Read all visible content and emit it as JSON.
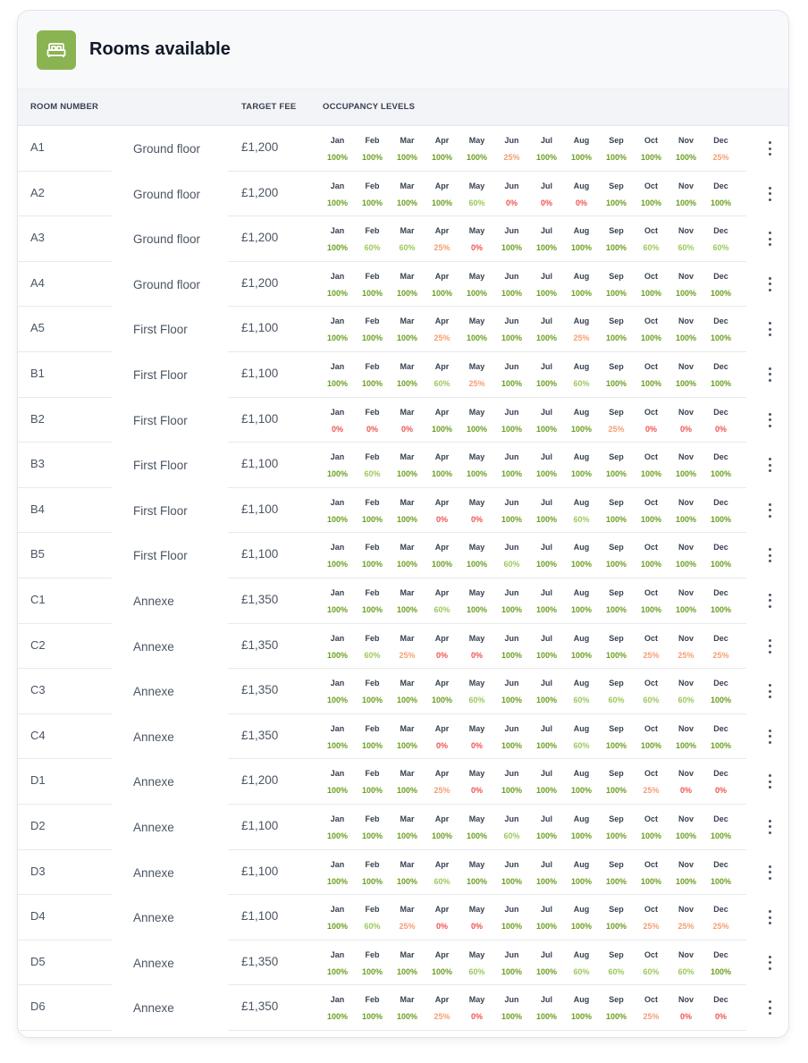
{
  "header": {
    "title": "Rooms available",
    "icon": "bed-icon",
    "accent": "#8ab451"
  },
  "columns": {
    "room_number": "ROOM NUMBER",
    "target_fee": "TARGET FEE",
    "occupancy": "OCCUPANCY LEVELS"
  },
  "months": [
    "Jan",
    "Feb",
    "Mar",
    "Apr",
    "May",
    "Jun",
    "Jul",
    "Aug",
    "Sep",
    "Oct",
    "Nov",
    "Dec"
  ],
  "level_colors": {
    "100%": "#6b9e1f",
    "60%": "#9cc95a",
    "25%": "#f59e73",
    "0%": "#ef5350"
  },
  "rows": [
    {
      "room": "A1",
      "floor": "Ground floor",
      "fee": "£1,200",
      "levels": [
        "100%",
        "100%",
        "100%",
        "100%",
        "100%",
        "25%",
        "100%",
        "100%",
        "100%",
        "100%",
        "100%",
        "25%"
      ]
    },
    {
      "room": "A2",
      "floor": "Ground floor",
      "fee": "£1,200",
      "levels": [
        "100%",
        "100%",
        "100%",
        "100%",
        "60%",
        "0%",
        "0%",
        "0%",
        "100%",
        "100%",
        "100%",
        "100%"
      ]
    },
    {
      "room": "A3",
      "floor": "Ground floor",
      "fee": "£1,200",
      "levels": [
        "100%",
        "60%",
        "60%",
        "25%",
        "0%",
        "100%",
        "100%",
        "100%",
        "100%",
        "60%",
        "60%",
        "60%"
      ]
    },
    {
      "room": "A4",
      "floor": "Ground floor",
      "fee": "£1,200",
      "levels": [
        "100%",
        "100%",
        "100%",
        "100%",
        "100%",
        "100%",
        "100%",
        "100%",
        "100%",
        "100%",
        "100%",
        "100%"
      ]
    },
    {
      "room": "A5",
      "floor": "First Floor",
      "fee": "£1,100",
      "levels": [
        "100%",
        "100%",
        "100%",
        "25%",
        "100%",
        "100%",
        "100%",
        "25%",
        "100%",
        "100%",
        "100%",
        "100%"
      ]
    },
    {
      "room": "B1",
      "floor": "First Floor",
      "fee": "£1,100",
      "levels": [
        "100%",
        "100%",
        "100%",
        "60%",
        "25%",
        "100%",
        "100%",
        "60%",
        "100%",
        "100%",
        "100%",
        "100%"
      ]
    },
    {
      "room": "B2",
      "floor": "First Floor",
      "fee": "£1,100",
      "levels": [
        "0%",
        "0%",
        "0%",
        "100%",
        "100%",
        "100%",
        "100%",
        "100%",
        "25%",
        "0%",
        "0%",
        "0%"
      ]
    },
    {
      "room": "B3",
      "floor": "First Floor",
      "fee": "£1,100",
      "levels": [
        "100%",
        "60%",
        "100%",
        "100%",
        "100%",
        "100%",
        "100%",
        "100%",
        "100%",
        "100%",
        "100%",
        "100%"
      ]
    },
    {
      "room": "B4",
      "floor": "First Floor",
      "fee": "£1,100",
      "levels": [
        "100%",
        "100%",
        "100%",
        "0%",
        "0%",
        "100%",
        "100%",
        "60%",
        "100%",
        "100%",
        "100%",
        "100%"
      ]
    },
    {
      "room": "B5",
      "floor": "First Floor",
      "fee": "£1,100",
      "levels": [
        "100%",
        "100%",
        "100%",
        "100%",
        "100%",
        "60%",
        "100%",
        "100%",
        "100%",
        "100%",
        "100%",
        "100%"
      ]
    },
    {
      "room": "C1",
      "floor": "Annexe",
      "fee": "£1,350",
      "levels": [
        "100%",
        "100%",
        "100%",
        "60%",
        "100%",
        "100%",
        "100%",
        "100%",
        "100%",
        "100%",
        "100%",
        "100%"
      ]
    },
    {
      "room": "C2",
      "floor": "Annexe",
      "fee": "£1,350",
      "levels": [
        "100%",
        "60%",
        "25%",
        "0%",
        "0%",
        "100%",
        "100%",
        "100%",
        "100%",
        "25%",
        "25%",
        "25%"
      ]
    },
    {
      "room": "C3",
      "floor": "Annexe",
      "fee": "£1,350",
      "levels": [
        "100%",
        "100%",
        "100%",
        "100%",
        "60%",
        "100%",
        "100%",
        "60%",
        "60%",
        "60%",
        "60%",
        "100%"
      ]
    },
    {
      "room": "C4",
      "floor": "Annexe",
      "fee": "£1,350",
      "levels": [
        "100%",
        "100%",
        "100%",
        "0%",
        "0%",
        "100%",
        "100%",
        "60%",
        "100%",
        "100%",
        "100%",
        "100%"
      ]
    },
    {
      "room": "D1",
      "floor": "Annexe",
      "fee": "£1,200",
      "levels": [
        "100%",
        "100%",
        "100%",
        "25%",
        "0%",
        "100%",
        "100%",
        "100%",
        "100%",
        "25%",
        "0%",
        "0%"
      ]
    },
    {
      "room": "D2",
      "floor": "Annexe",
      "fee": "£1,100",
      "levels": [
        "100%",
        "100%",
        "100%",
        "100%",
        "100%",
        "60%",
        "100%",
        "100%",
        "100%",
        "100%",
        "100%",
        "100%"
      ]
    },
    {
      "room": "D3",
      "floor": "Annexe",
      "fee": "£1,100",
      "levels": [
        "100%",
        "100%",
        "100%",
        "60%",
        "100%",
        "100%",
        "100%",
        "100%",
        "100%",
        "100%",
        "100%",
        "100%"
      ]
    },
    {
      "room": "D4",
      "floor": "Annexe",
      "fee": "£1,100",
      "levels": [
        "100%",
        "60%",
        "25%",
        "0%",
        "0%",
        "100%",
        "100%",
        "100%",
        "100%",
        "25%",
        "25%",
        "25%"
      ]
    },
    {
      "room": "D5",
      "floor": "Annexe",
      "fee": "£1,350",
      "levels": [
        "100%",
        "100%",
        "100%",
        "100%",
        "60%",
        "100%",
        "100%",
        "60%",
        "60%",
        "60%",
        "60%",
        "100%"
      ]
    },
    {
      "room": "D6",
      "floor": "Annexe",
      "fee": "£1,350",
      "levels": [
        "100%",
        "100%",
        "100%",
        "25%",
        "0%",
        "100%",
        "100%",
        "100%",
        "100%",
        "25%",
        "0%",
        "0%"
      ]
    }
  ]
}
